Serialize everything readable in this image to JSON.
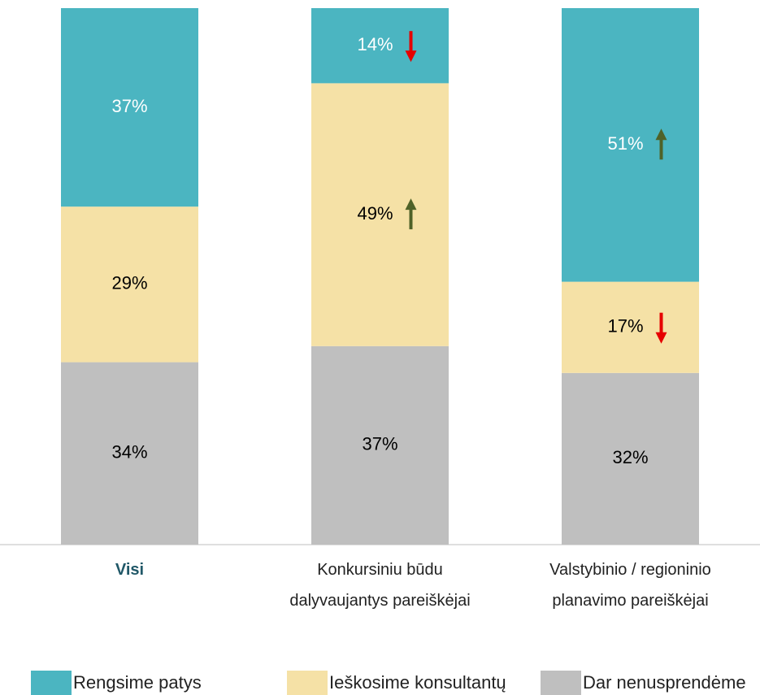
{
  "chart_data": {
    "type": "stacked_bar",
    "categories": [
      "Visi",
      "Konkursiniu būdu\ndalyvaujantys pareiškėjai",
      "Valstybinio / regioninio\nplanavimo pareiškėjai"
    ],
    "ylim": [
      0,
      100
    ],
    "series": [
      {
        "name": "Rengsime patys",
        "color": "#4bb5c1",
        "label_color": "#ffffff",
        "values": [
          37,
          14,
          51
        ],
        "value_labels": [
          "37%",
          "14%",
          "51%"
        ],
        "trend": [
          null,
          "down",
          "up"
        ]
      },
      {
        "name": "Ieškosime konsultantų",
        "color": "#f5e1a6",
        "label_color": "#000000",
        "values": [
          29,
          49,
          17
        ],
        "value_labels": [
          "29%",
          "49%",
          "17%"
        ],
        "trend": [
          null,
          "up",
          "down"
        ]
      },
      {
        "name": "Dar nenusprendėme",
        "color": "#bfbfbf",
        "label_color": "#000000",
        "values": [
          34,
          37,
          32
        ],
        "value_labels": [
          "34%",
          "37%",
          "32%"
        ],
        "trend": [
          null,
          null,
          null
        ]
      }
    ],
    "trend_colors": {
      "up": "#4f6228",
      "down": "#e60000"
    }
  }
}
